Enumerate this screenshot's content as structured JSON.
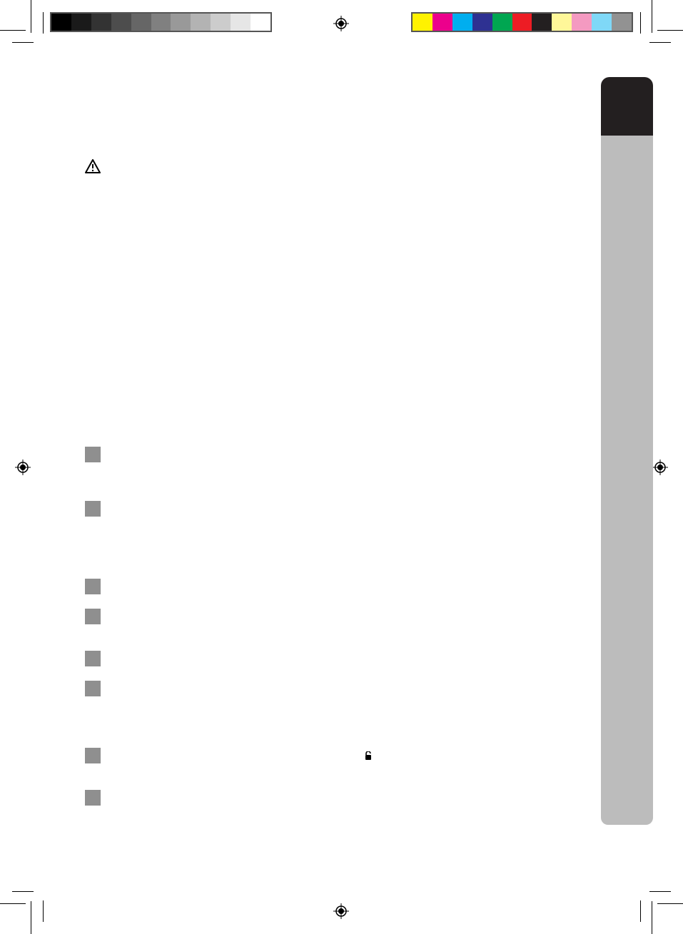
{
  "print_marks": {
    "grayscale_bar": [
      "#000000",
      "#1a1a1a",
      "#333333",
      "#4d4d4d",
      "#666666",
      "#808080",
      "#999999",
      "#b3b3b3",
      "#cccccc",
      "#e6e6e6",
      "#ffffff"
    ],
    "color_bar": [
      "#fff200",
      "#ec008c",
      "#00aeef",
      "#2e3192",
      "#00a651",
      "#ed1c24",
      "#231f20",
      "#fff799",
      "#f49ac1",
      "#7fd8f7",
      "#929292"
    ],
    "registration_icon": "crosshair-target-icon"
  },
  "side_tab": {
    "top_color": "#231f20",
    "body_color": "#bcbcbc"
  },
  "content": {
    "warning_icon": "warning-triangle-icon",
    "step_marker_color": "#8f8f8f",
    "inline_icon": "unlock-icon"
  }
}
